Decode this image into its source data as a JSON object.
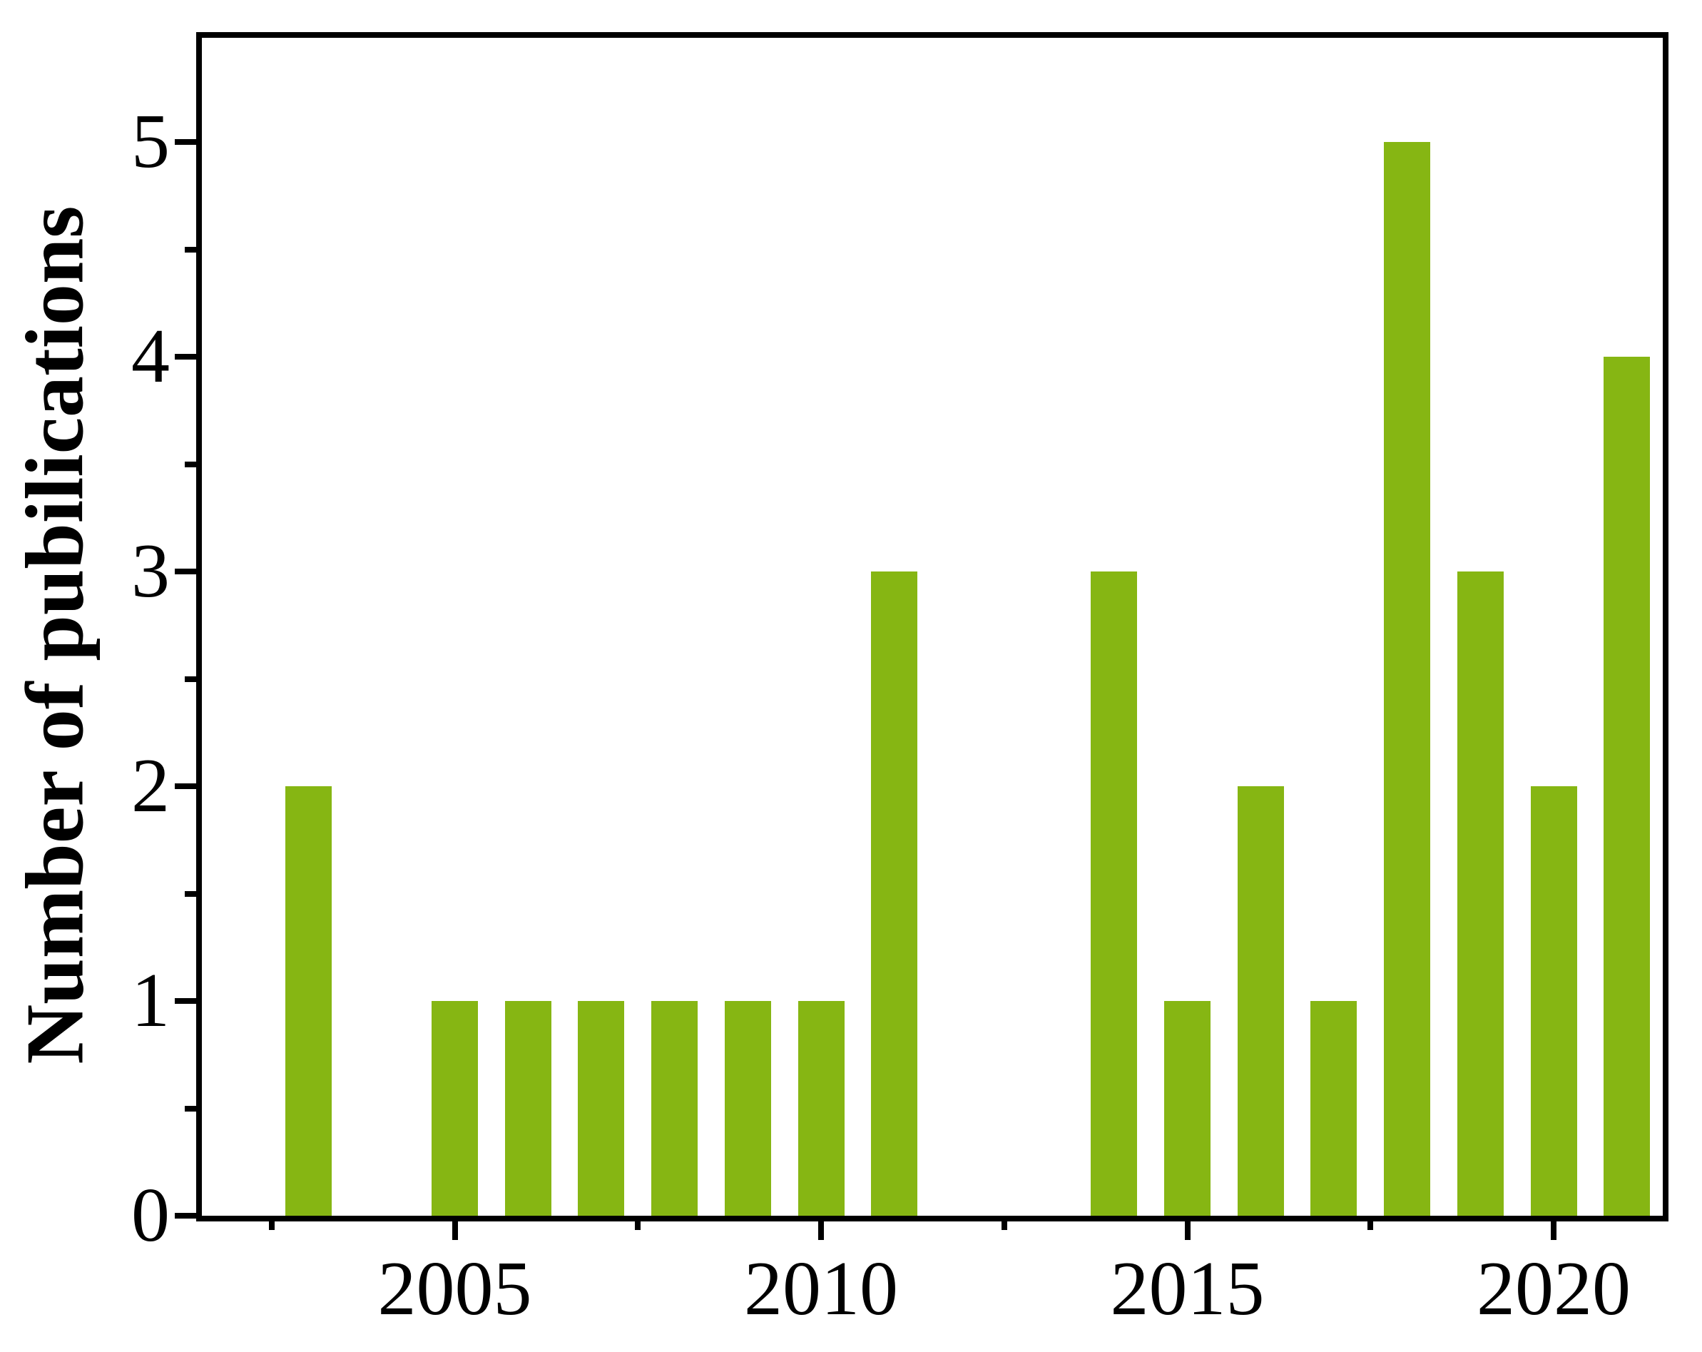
{
  "chart_data": {
    "type": "bar",
    "title": "",
    "xlabel": "",
    "ylabel": "Number of pubilications",
    "years": [
      2003,
      2004,
      2005,
      2006,
      2007,
      2008,
      2009,
      2010,
      2011,
      2012,
      2013,
      2014,
      2015,
      2016,
      2017,
      2018,
      2019,
      2020,
      2021
    ],
    "values": [
      2,
      0,
      1,
      1,
      1,
      1,
      1,
      1,
      3,
      0,
      0,
      3,
      1,
      2,
      1,
      5,
      3,
      2,
      4
    ],
    "y_tick_labels": [
      "0",
      "1",
      "2",
      "3",
      "4",
      "5"
    ],
    "y_major_ticks": [
      0,
      1,
      2,
      3,
      4,
      5
    ],
    "y_minor_ticks": [
      0.5,
      1.5,
      2.5,
      3.5,
      4.5
    ],
    "x_tick_labels": [
      "2005",
      "2010",
      "2015",
      "2020"
    ],
    "x_major_ticks": [
      2005,
      2010,
      2015,
      2020
    ],
    "x_minor_ticks": [
      2002.5,
      2007.5,
      2012.5,
      2017.5
    ],
    "xlim": [
      2001.55,
      2021.5
    ],
    "ylim": [
      0,
      5.48
    ],
    "bar_width_years": 0.63,
    "bar_color": "#86B613",
    "axis_color": "#000000",
    "background_color": "#FFFFFF",
    "grid": false,
    "legend": null
  }
}
